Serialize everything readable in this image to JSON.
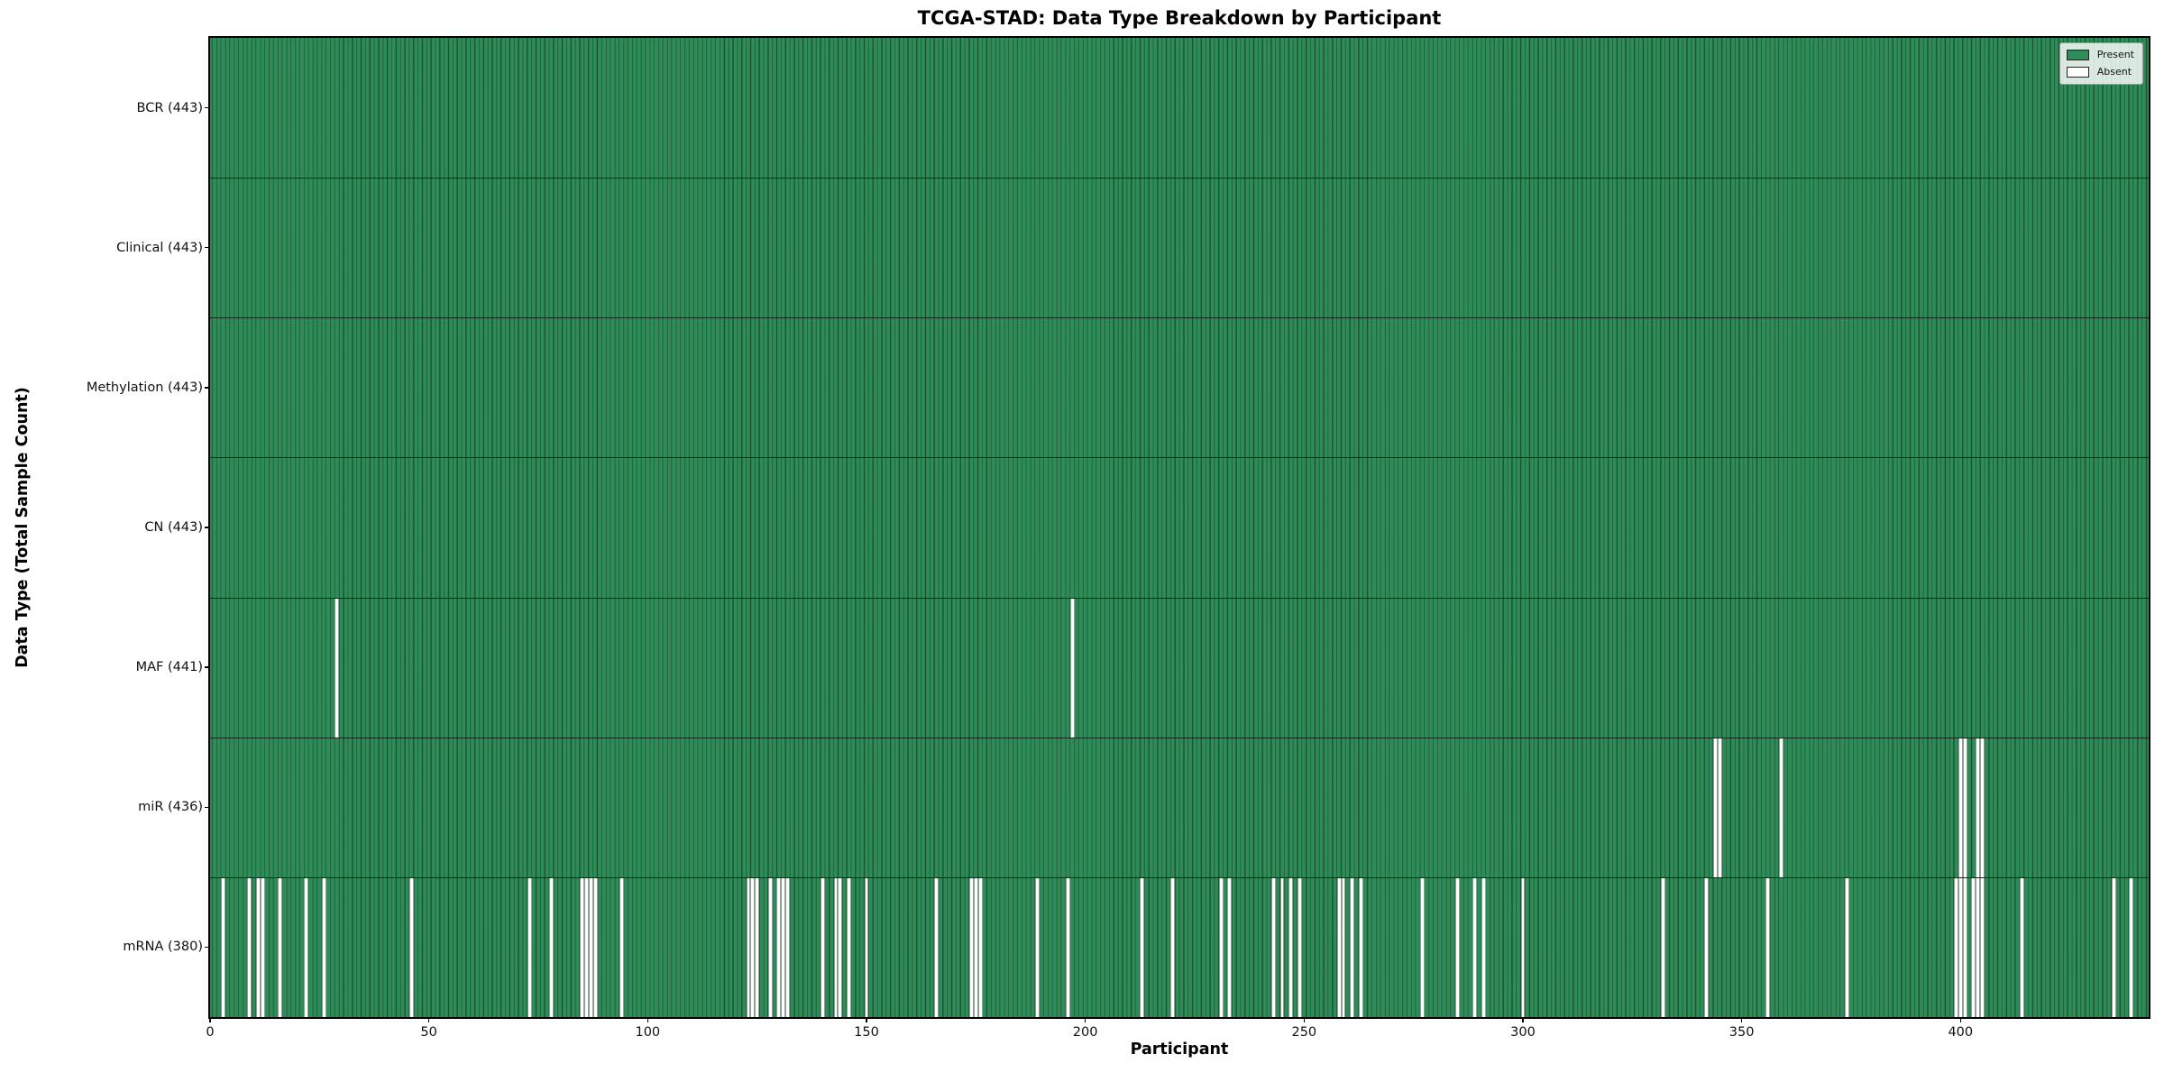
{
  "chart_data": {
    "type": "heatmap",
    "title": "TCGA-STAD: Data Type Breakdown by Participant",
    "xlabel": "Participant",
    "ylabel": "Data Type (Total Sample Count)",
    "x_range": [
      0,
      443
    ],
    "n_participants": 443,
    "x_ticks": [
      0,
      50,
      100,
      150,
      200,
      250,
      300,
      350,
      400
    ],
    "grid": false,
    "legend_position": "upper right",
    "legend": [
      {
        "label": "Present",
        "color": "#2e8c58"
      },
      {
        "label": "Absent",
        "color": "#ffffff"
      }
    ],
    "colors": {
      "present": "#2f8c58",
      "absent": "#ffffff",
      "bar_edge": "rgba(8,40,22,0.55)",
      "row_separator": "rgba(5,20,12,0.8)",
      "plot_border": "#000000"
    },
    "rows": [
      {
        "label": "BCR (443)",
        "name": "BCR",
        "present_count": 443,
        "absent_participants": []
      },
      {
        "label": "Clinical (443)",
        "name": "Clinical",
        "present_count": 443,
        "absent_participants": []
      },
      {
        "label": "Methylation (443)",
        "name": "Methylation",
        "present_count": 443,
        "absent_participants": []
      },
      {
        "label": "CN (443)",
        "name": "CN",
        "present_count": 443,
        "absent_participants": []
      },
      {
        "label": "MAF (441)",
        "name": "MAF",
        "present_count": 441,
        "absent_participants": [
          29,
          197
        ]
      },
      {
        "label": "miR (436)",
        "name": "miR",
        "present_count": 436,
        "absent_participants": [
          344,
          345,
          359,
          400,
          401,
          404,
          405
        ]
      },
      {
        "label": "mRNA (380)",
        "name": "mRNA",
        "present_count": 380,
        "absent_participants": [
          3,
          9,
          11,
          12,
          16,
          22,
          26,
          46,
          73,
          78,
          85,
          86,
          87,
          88,
          94,
          123,
          124,
          125,
          128,
          130,
          131,
          132,
          140,
          143,
          144,
          146,
          150,
          166,
          174,
          175,
          176,
          189,
          196,
          213,
          220,
          231,
          233,
          243,
          245,
          247,
          249,
          258,
          259,
          261,
          263,
          277,
          285,
          289,
          291,
          300,
          332,
          342,
          356,
          374,
          399,
          400,
          401,
          403,
          404,
          405,
          414,
          435,
          439
        ]
      }
    ]
  }
}
